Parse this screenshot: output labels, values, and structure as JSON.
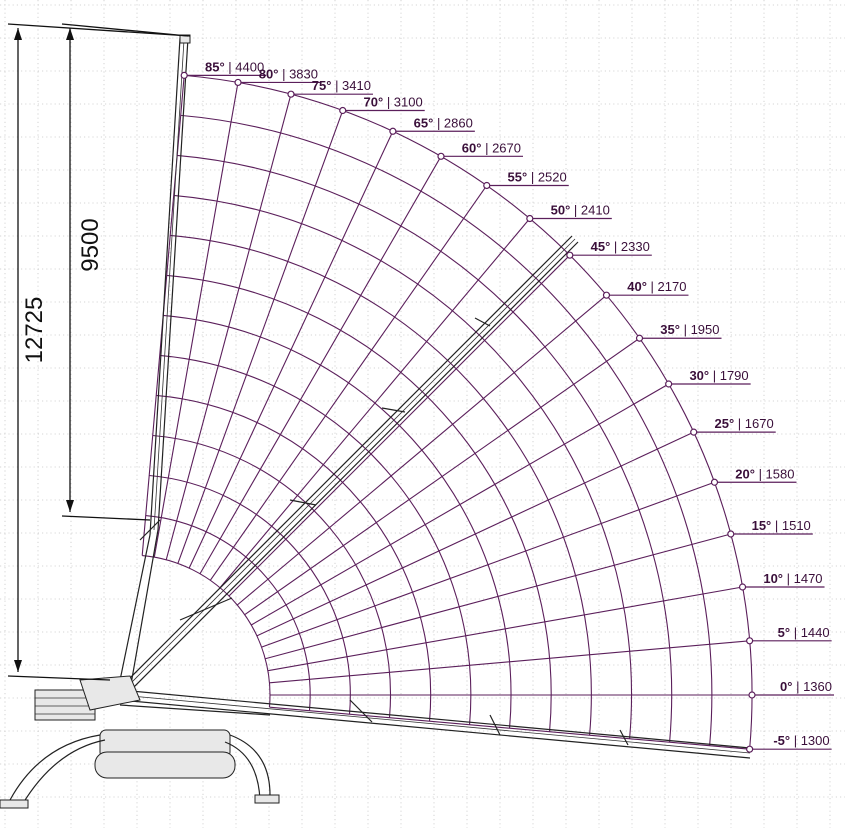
{
  "dimensions": {
    "total_height_label": "12725",
    "boom_length_label": "9500"
  },
  "angle_labels": [
    {
      "angle": "85°",
      "load": "| 4400"
    },
    {
      "angle": "80°",
      "load": "| 3830"
    },
    {
      "angle": "75°",
      "load": "| 3410"
    },
    {
      "angle": "70°",
      "load": "| 3100"
    },
    {
      "angle": "65°",
      "load": "| 2860"
    },
    {
      "angle": "60°",
      "load": "| 2670"
    },
    {
      "angle": "55°",
      "load": "| 2520"
    },
    {
      "angle": "50°",
      "load": "| 2410"
    },
    {
      "angle": "45°",
      "load": "| 2330"
    },
    {
      "angle": "40°",
      "load": "| 2170"
    },
    {
      "angle": "35°",
      "load": "| 1950"
    },
    {
      "angle": "30°",
      "load": "| 1790"
    },
    {
      "angle": "25°",
      "load": "| 1670"
    },
    {
      "angle": "20°",
      "load": "| 1580"
    },
    {
      "angle": "15°",
      "load": "| 1510"
    },
    {
      "angle": "10°",
      "load": "| 1470"
    },
    {
      "angle": "5°",
      "load": "| 1440"
    },
    {
      "angle": "0°",
      "load": "| 1360"
    },
    {
      "angle": "-5°",
      "load": "| 1300"
    }
  ],
  "colors": {
    "chart_line": "#5b1f5b",
    "label_text": "#3a0f3a",
    "grid": "#c9c9c9",
    "crane": "#222222"
  }
}
